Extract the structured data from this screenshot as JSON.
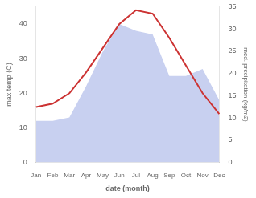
{
  "chart_data": {
    "type": "line",
    "xlabel": "date (month)",
    "ylabel": "max temp (C)",
    "y2label": "med. precipitation (kg/m2)",
    "categories": [
      "Jan",
      "Feb",
      "Mar",
      "Apr",
      "May",
      "Jun",
      "Jul",
      "Aug",
      "Sep",
      "Oct",
      "Nov",
      "Dec"
    ],
    "series": [
      {
        "type": "area",
        "color": "#c8d0f0",
        "values": [
          12,
          12,
          13,
          22,
          32,
          40,
          38,
          37,
          25,
          25,
          27,
          18
        ]
      },
      {
        "type": "line",
        "color": "#cc3333",
        "values": [
          16,
          17,
          20,
          26,
          33,
          40,
          44,
          43,
          36,
          28,
          20,
          14
        ]
      }
    ],
    "ylim": [
      0,
      45
    ],
    "yticks": [
      0,
      10,
      20,
      30,
      40
    ],
    "y2lim": [
      0,
      35
    ],
    "y2ticks": [
      0,
      5,
      10,
      15,
      20,
      25,
      30,
      35
    ],
    "grid": false
  }
}
